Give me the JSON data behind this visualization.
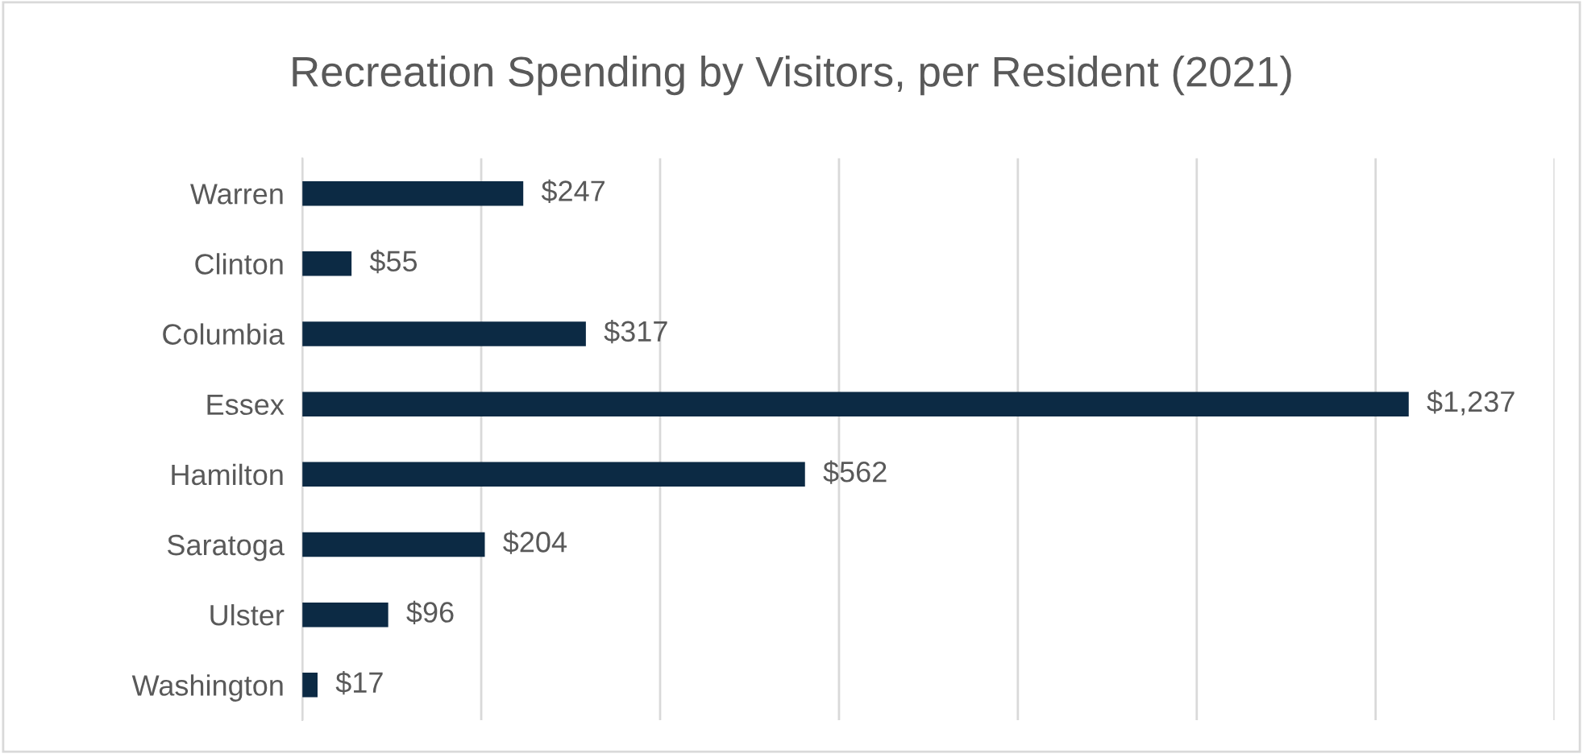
{
  "chart_data": {
    "type": "bar",
    "orientation": "horizontal",
    "title": "Recreation Spending by Visitors, per Resident (2021)",
    "categories": [
      "Warren",
      "Clinton",
      "Columbia",
      "Essex",
      "Hamilton",
      "Saratoga",
      "Ulster",
      "Washington"
    ],
    "values": [
      247,
      55,
      317,
      1237,
      562,
      204,
      96,
      17
    ],
    "value_labels": [
      "$247",
      "$55",
      "$317",
      "$1,237",
      "$562",
      "$204",
      "$96",
      "$17"
    ],
    "color": "#0c2a44",
    "xlim": [
      0,
      1400
    ],
    "xticks": [
      {
        "value": 0,
        "label": null
      },
      {
        "value": 200,
        "label": null
      },
      {
        "value": 400,
        "label": null
      },
      {
        "value": 600,
        "label": null
      },
      {
        "value": 800,
        "label": null
      },
      {
        "value": 1000,
        "label": null
      },
      {
        "value": 1200,
        "label": null
      },
      {
        "value": 1400,
        "label": null
      }
    ],
    "grid": "x",
    "legend": false
  }
}
